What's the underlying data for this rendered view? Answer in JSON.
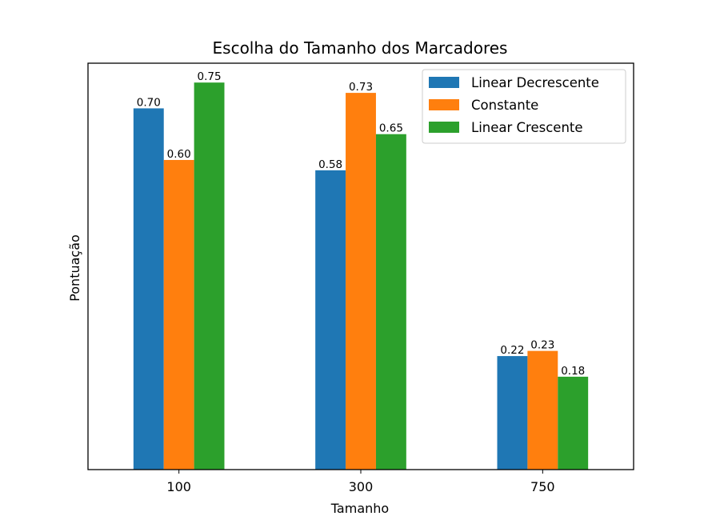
{
  "chart_data": {
    "type": "bar",
    "title": "Escolha do Tamanho dos Marcadores",
    "xlabel": "Tamanho",
    "ylabel": "Pontuação",
    "categories": [
      "100",
      "300",
      "750"
    ],
    "series": [
      {
        "name": "Linear Decrescente",
        "color": "#1f77b4",
        "values": [
          0.7,
          0.58,
          0.22
        ],
        "labels": [
          "0.70",
          "0.58",
          "0.22"
        ]
      },
      {
        "name": "Constante",
        "color": "#ff7f0e",
        "values": [
          0.6,
          0.73,
          0.23
        ],
        "labels": [
          "0.60",
          "0.73",
          "0.23"
        ]
      },
      {
        "name": "Linear Crescente",
        "color": "#2ca02c",
        "values": [
          0.75,
          0.65,
          0.18
        ],
        "labels": [
          "0.75",
          "0.65",
          "0.18"
        ]
      }
    ],
    "ylim": [
      0,
      0.7875
    ],
    "y_ticks_shown": false,
    "grid": false,
    "legend": "top-right"
  }
}
